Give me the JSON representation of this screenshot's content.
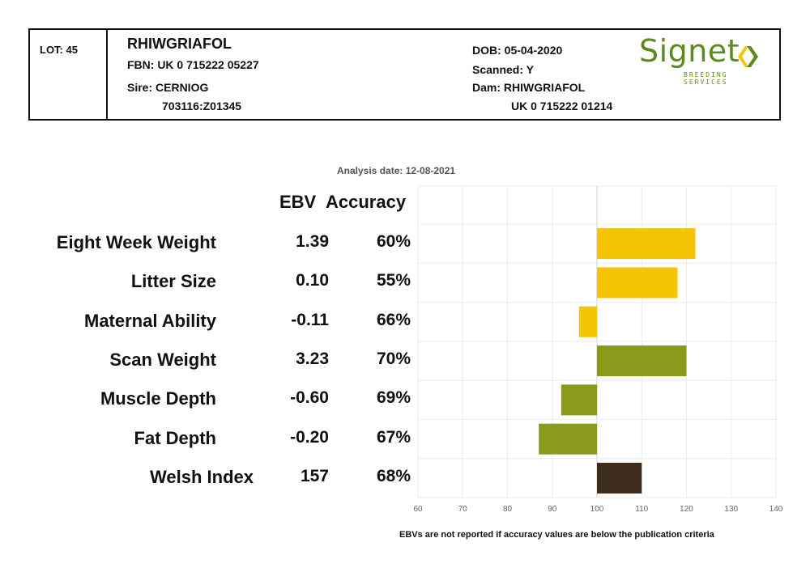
{
  "header": {
    "lot": "LOT: 45",
    "name": "RHIWGRIAFOL",
    "fbn": "FBN: UK 0 715222 05227",
    "sire": "Sire: CERNIOG",
    "sire_id": "703116:Z01345",
    "dob": "DOB: 05-04-2020",
    "scanned": "Scanned: Y",
    "dam": "Dam: RHIWGRIAFOL",
    "dam_id": "UK 0 715222 01214"
  },
  "logo": {
    "word": "Signet",
    "sub": "BREEDING SERVICES",
    "color": "#5d8a1f",
    "icon": "signet-chevrons-icon"
  },
  "analysis_date": "Analysis date: 12-08-2021",
  "columns": {
    "ebv": "EBV",
    "accuracy": "Accuracy"
  },
  "footnote": "EBVs are not reported if accuracy values are below the publication criteria",
  "chart_data": {
    "type": "bar",
    "orientation": "horizontal",
    "baseline": 100,
    "xlim": [
      60,
      140
    ],
    "xticks": [
      "60",
      "70",
      "80",
      "90",
      "100",
      "110",
      "120",
      "130",
      "140"
    ],
    "grid": true,
    "rows": [
      {
        "trait": "Eight Week Weight",
        "ebv": "1.39",
        "accuracy": "60%",
        "index_value": 122,
        "color": "#f5c400"
      },
      {
        "trait": "Litter Size",
        "ebv": "0.10",
        "accuracy": "55%",
        "index_value": 118,
        "color": "#f5c400"
      },
      {
        "trait": "Maternal Ability",
        "ebv": "-0.11",
        "accuracy": "66%",
        "index_value": 96,
        "color": "#f5c400"
      },
      {
        "trait": "Scan Weight",
        "ebv": "3.23",
        "accuracy": "70%",
        "index_value": 120,
        "color": "#8a9a1a"
      },
      {
        "trait": "Muscle Depth",
        "ebv": "-0.60",
        "accuracy": "69%",
        "index_value": 92,
        "color": "#8a9a1a"
      },
      {
        "trait": "Fat Depth",
        "ebv": "-0.20",
        "accuracy": "67%",
        "index_value": 87,
        "color": "#8a9a1a"
      },
      {
        "trait": "Welsh Index",
        "ebv": "157",
        "accuracy": "68%",
        "index_value": 110,
        "color": "#3d2b1c"
      }
    ]
  }
}
